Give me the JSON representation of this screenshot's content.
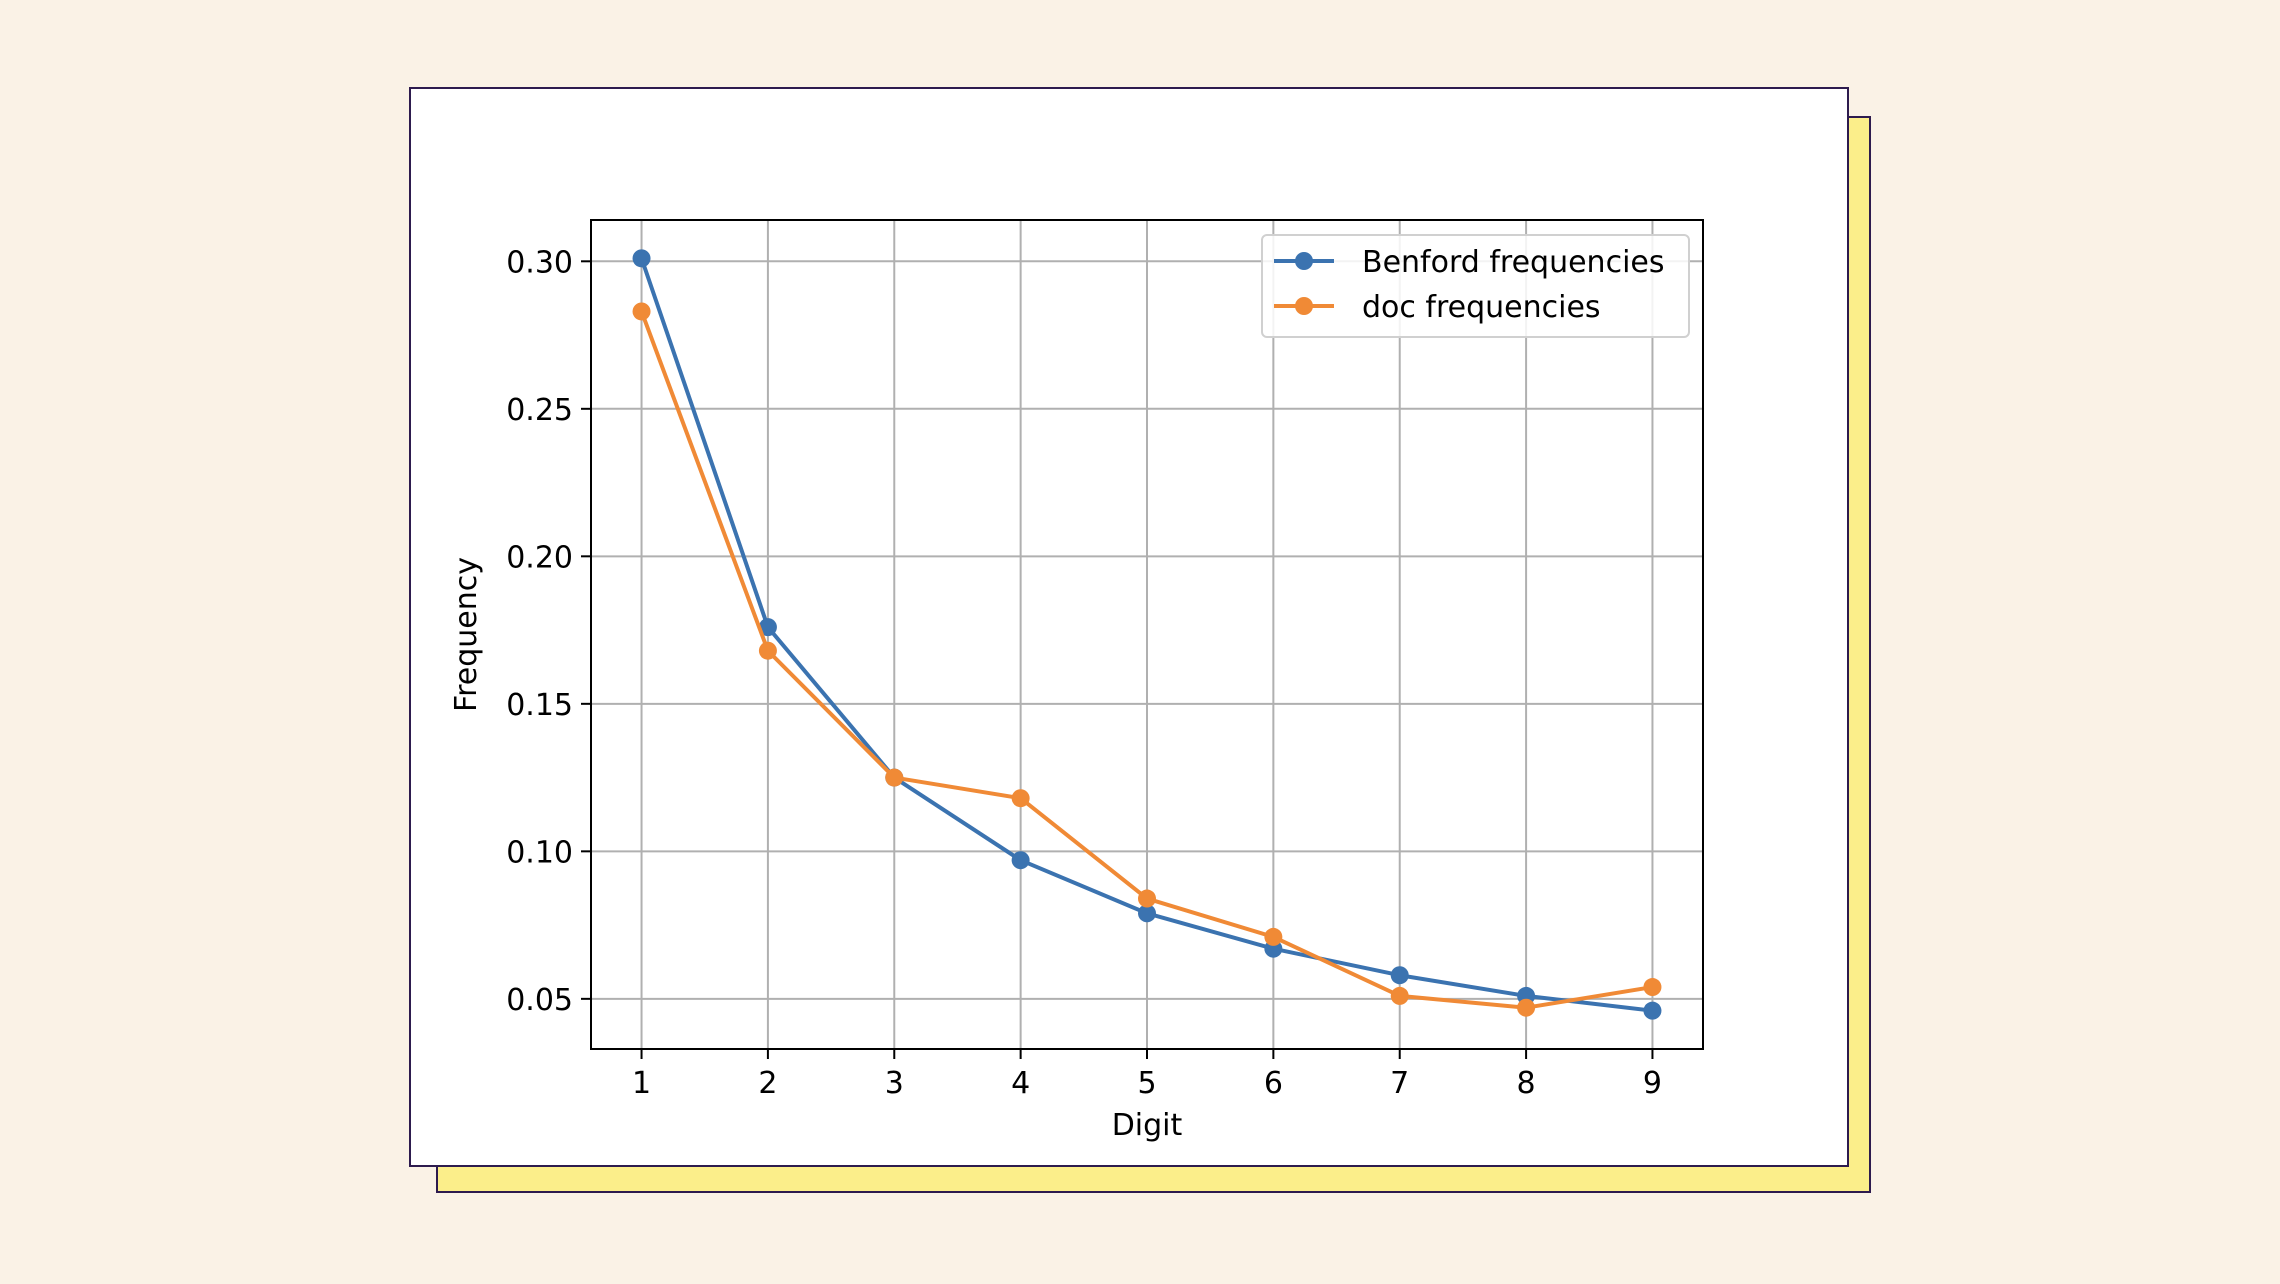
{
  "chart_data": {
    "type": "line",
    "title": "",
    "xlabel": "Digit",
    "ylabel": "Frequency",
    "x": [
      1,
      2,
      3,
      4,
      5,
      6,
      7,
      8,
      9
    ],
    "xticks": [
      "1",
      "2",
      "3",
      "4",
      "5",
      "6",
      "7",
      "8",
      "9"
    ],
    "yticks": [
      "0.05",
      "0.10",
      "0.15",
      "0.20",
      "0.25",
      "0.30"
    ],
    "xlim": [
      0.6,
      9.4
    ],
    "ylim": [
      0.033,
      0.314
    ],
    "grid": true,
    "legend_position": "top-right",
    "series": [
      {
        "name": "Benford frequencies",
        "color": "#3b73b0",
        "values": [
          0.301,
          0.176,
          0.125,
          0.097,
          0.079,
          0.067,
          0.058,
          0.051,
          0.046
        ]
      },
      {
        "name": "doc frequencies",
        "color": "#f08a36",
        "values": [
          0.283,
          0.168,
          0.125,
          0.118,
          0.084,
          0.071,
          0.051,
          0.047,
          0.054
        ]
      }
    ]
  }
}
